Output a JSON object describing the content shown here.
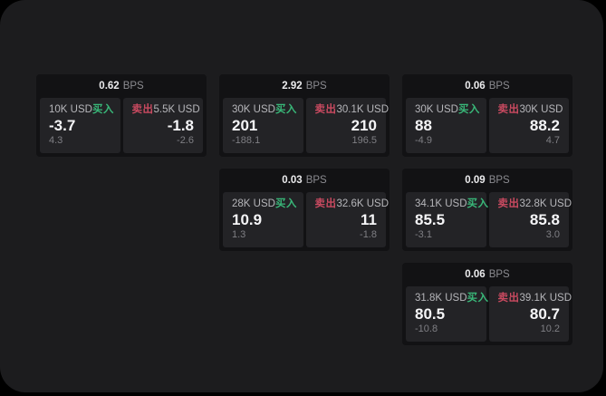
{
  "labels": {
    "buy": "买入",
    "sell": "卖出",
    "bps_unit": "BPS"
  },
  "colors": {
    "background_outer": "#000000",
    "window_background": "#1c1c1e",
    "card_background": "#121214",
    "panel_background": "#232326",
    "buy_green": "#39b879",
    "sell_red": "#c94a60"
  },
  "cards": [
    {
      "bps": "0.62",
      "buy": {
        "amount": "10K USD",
        "price": "-3.7",
        "sub": "4.3"
      },
      "sell": {
        "amount": "5.5K USD",
        "price": "-1.8",
        "sub": "-2.6"
      }
    },
    {
      "bps": "2.92",
      "buy": {
        "amount": "30K USD",
        "price": "201",
        "sub": "-188.1"
      },
      "sell": {
        "amount": "30.1K USD",
        "price": "210",
        "sub": "196.5"
      }
    },
    {
      "bps": "0.06",
      "buy": {
        "amount": "30K USD",
        "price": "88",
        "sub": "-4.9"
      },
      "sell": {
        "amount": "30K USD",
        "price": "88.2",
        "sub": "4.7"
      }
    },
    {
      "bps": "0.03",
      "buy": {
        "amount": "28K USD",
        "price": "10.9",
        "sub": "1.3"
      },
      "sell": {
        "amount": "32.6K USD",
        "price": "11",
        "sub": "-1.8"
      }
    },
    {
      "bps": "0.09",
      "buy": {
        "amount": "34.1K USD",
        "price": "85.5",
        "sub": "-3.1"
      },
      "sell": {
        "amount": "32.8K USD",
        "price": "85.8",
        "sub": "3.0"
      }
    },
    {
      "bps": "0.06",
      "buy": {
        "amount": "31.8K USD",
        "price": "80.5",
        "sub": "-10.8"
      },
      "sell": {
        "amount": "39.1K USD",
        "price": "80.7",
        "sub": "10.2"
      }
    }
  ]
}
